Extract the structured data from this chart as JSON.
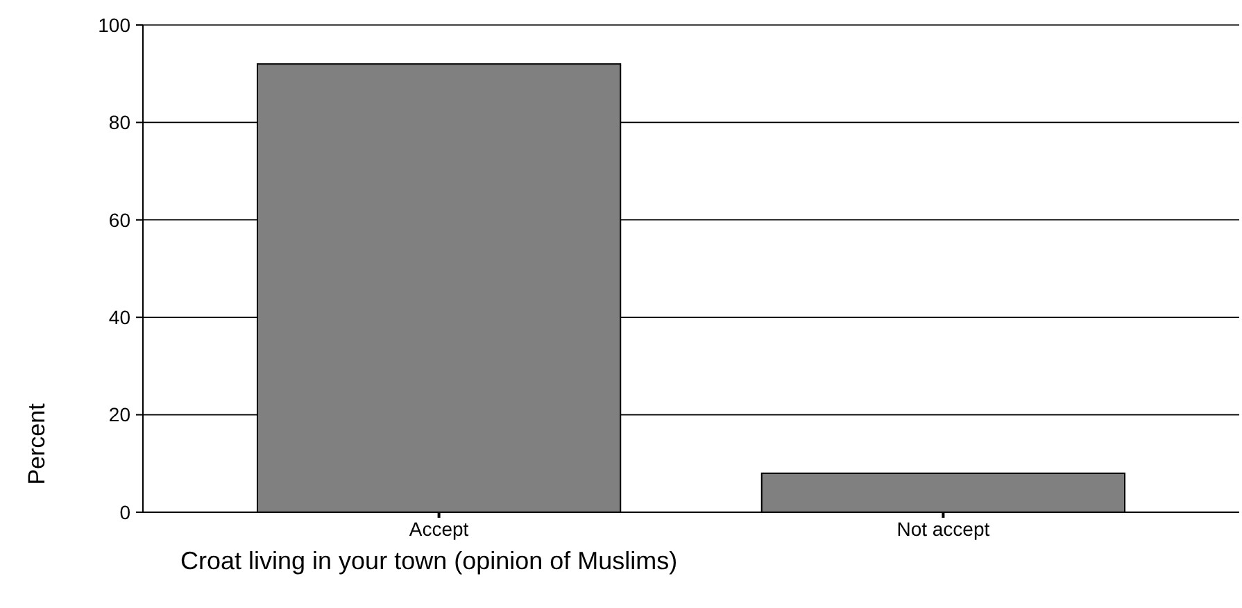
{
  "chart_data": {
    "type": "bar",
    "xlabel": "Croat living in your town  (opinion of Muslims)",
    "ylabel": "Percent",
    "categories": [
      "Accept",
      "Not accept"
    ],
    "values": [
      92,
      8
    ],
    "color": "#808080",
    "ylim": [
      0,
      100
    ],
    "yticks": [
      0,
      20,
      40,
      60,
      80,
      100
    ],
    "grid": "y"
  }
}
